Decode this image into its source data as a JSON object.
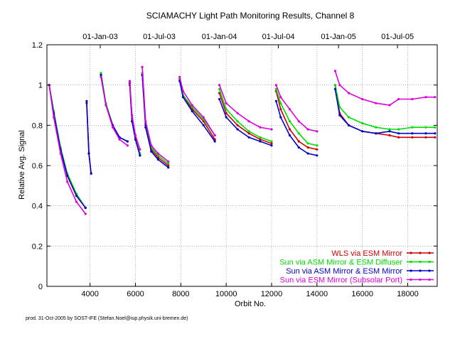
{
  "chart_data": {
    "type": "line",
    "title": "SCIAMACHY Light Path Monitoring Results, Channel 8",
    "xlabel": "Orbit No.",
    "ylabel": "Relative Avg. Signal",
    "xlim": [
      2100,
      19300
    ],
    "ylim": [
      0,
      1.2
    ],
    "x_ticks": [
      4000,
      6000,
      8000,
      10000,
      12000,
      14000,
      16000,
      18000
    ],
    "y_ticks": [
      "0",
      "0.2",
      "0.4",
      "0.6",
      "0.8",
      "1",
      "1.2"
    ],
    "top_axis_dates": [
      {
        "label": "01-Jan-03",
        "orbit": 4450
      },
      {
        "label": "01-Jul-03",
        "orbit": 7050
      },
      {
        "label": "01-Jan-04",
        "orbit": 9700
      },
      {
        "label": "01-Jul-04",
        "orbit": 12300
      },
      {
        "label": "01-Jan-05",
        "orbit": 14950
      },
      {
        "label": "01-Jul-05",
        "orbit": 17550
      }
    ],
    "grid": true,
    "legend_position": "bottom-right",
    "series": [
      {
        "name": "WLS via ESM Mirror",
        "color": "#cc0000",
        "segments": [
          [
            [
              2200,
              1.0
            ],
            [
              2400,
              0.86
            ],
            [
              2700,
              0.68
            ],
            [
              3000,
              0.55
            ],
            [
              3400,
              0.45
            ],
            [
              3800,
              0.39
            ]
          ],
          [
            [
              3850,
              0.91
            ],
            [
              3950,
              0.66
            ],
            [
              4050,
              0.56
            ]
          ],
          [
            [
              4480,
              1.05
            ],
            [
              4700,
              0.9
            ],
            [
              5000,
              0.8
            ],
            [
              5300,
              0.74
            ],
            [
              5650,
              0.72
            ]
          ],
          [
            [
              5750,
              1.0
            ],
            [
              5850,
              0.82
            ],
            [
              6000,
              0.73
            ],
            [
              6200,
              0.65
            ]
          ],
          [
            [
              6300,
              1.05
            ],
            [
              6450,
              0.8
            ],
            [
              6700,
              0.68
            ],
            [
              7000,
              0.64
            ],
            [
              7450,
              0.6
            ]
          ],
          [
            [
              7950,
              1.03
            ],
            [
              8100,
              0.95
            ],
            [
              8500,
              0.88
            ],
            [
              9000,
              0.82
            ],
            [
              9500,
              0.73
            ]
          ],
          [
            [
              9700,
              0.96
            ],
            [
              10000,
              0.86
            ],
            [
              10500,
              0.8
            ],
            [
              11000,
              0.76
            ],
            [
              11500,
              0.73
            ],
            [
              12000,
              0.71
            ]
          ],
          [
            [
              12200,
              0.97
            ],
            [
              12400,
              0.88
            ],
            [
              12800,
              0.78
            ],
            [
              13200,
              0.72
            ],
            [
              13600,
              0.69
            ],
            [
              14000,
              0.68
            ]
          ],
          [
            [
              14800,
              1.0
            ],
            [
              15000,
              0.86
            ],
            [
              15400,
              0.8
            ],
            [
              16000,
              0.77
            ],
            [
              16600,
              0.76
            ],
            [
              17200,
              0.75
            ],
            [
              17600,
              0.74
            ],
            [
              18200,
              0.74
            ],
            [
              18800,
              0.74
            ],
            [
              19200,
              0.74
            ]
          ]
        ]
      },
      {
        "name": "Sun via ASM Mirror & ESM Diffuser",
        "color": "#00dd00",
        "segments": [
          [
            [
              2200,
              1.0
            ],
            [
              2400,
              0.87
            ],
            [
              2700,
              0.69
            ],
            [
              3000,
              0.56
            ],
            [
              3400,
              0.46
            ],
            [
              3800,
              0.39
            ]
          ],
          [
            [
              4480,
              1.06
            ],
            [
              4700,
              0.91
            ],
            [
              5000,
              0.8
            ],
            [
              5300,
              0.74
            ],
            [
              5650,
              0.72
            ]
          ],
          [
            [
              5750,
              1.01
            ],
            [
              5850,
              0.82
            ],
            [
              6000,
              0.73
            ],
            [
              6200,
              0.66
            ]
          ],
          [
            [
              6300,
              1.06
            ],
            [
              6450,
              0.81
            ],
            [
              6700,
              0.69
            ],
            [
              7000,
              0.65
            ],
            [
              7450,
              0.61
            ]
          ],
          [
            [
              7950,
              1.03
            ],
            [
              8100,
              0.95
            ],
            [
              8500,
              0.89
            ],
            [
              9000,
              0.83
            ],
            [
              9500,
              0.75
            ]
          ],
          [
            [
              9700,
              0.98
            ],
            [
              10000,
              0.88
            ],
            [
              10500,
              0.82
            ],
            [
              11000,
              0.77
            ],
            [
              11500,
              0.74
            ],
            [
              12000,
              0.72
            ]
          ],
          [
            [
              12200,
              0.98
            ],
            [
              12400,
              0.91
            ],
            [
              12800,
              0.82
            ],
            [
              13200,
              0.76
            ],
            [
              13600,
              0.71
            ],
            [
              14000,
              0.7
            ]
          ],
          [
            [
              14800,
              1.0
            ],
            [
              15000,
              0.89
            ],
            [
              15400,
              0.84
            ],
            [
              16000,
              0.81
            ],
            [
              16600,
              0.79
            ],
            [
              17200,
              0.78
            ],
            [
              17600,
              0.78
            ],
            [
              18200,
              0.79
            ],
            [
              18800,
              0.79
            ],
            [
              19200,
              0.79
            ]
          ]
        ]
      },
      {
        "name": "Sun via ASM Mirror & ESM Mirror",
        "color": "#0000cc",
        "segments": [
          [
            [
              2200,
              1.0
            ],
            [
              2400,
              0.86
            ],
            [
              2700,
              0.68
            ],
            [
              3000,
              0.55
            ],
            [
              3400,
              0.45
            ],
            [
              3800,
              0.39
            ]
          ],
          [
            [
              3850,
              0.92
            ],
            [
              3950,
              0.66
            ],
            [
              4050,
              0.56
            ]
          ],
          [
            [
              4480,
              1.05
            ],
            [
              4700,
              0.9
            ],
            [
              5000,
              0.8
            ],
            [
              5300,
              0.74
            ],
            [
              5650,
              0.72
            ]
          ],
          [
            [
              5750,
              1.01
            ],
            [
              5850,
              0.82
            ],
            [
              6000,
              0.73
            ],
            [
              6200,
              0.65
            ]
          ],
          [
            [
              6300,
              1.05
            ],
            [
              6450,
              0.79
            ],
            [
              6700,
              0.67
            ],
            [
              7000,
              0.63
            ],
            [
              7450,
              0.59
            ]
          ],
          [
            [
              7950,
              1.02
            ],
            [
              8100,
              0.94
            ],
            [
              8500,
              0.87
            ],
            [
              9000,
              0.8
            ],
            [
              9500,
              0.72
            ]
          ],
          [
            [
              9700,
              0.93
            ],
            [
              10000,
              0.84
            ],
            [
              10500,
              0.78
            ],
            [
              11000,
              0.74
            ],
            [
              11500,
              0.72
            ],
            [
              12000,
              0.7
            ]
          ],
          [
            [
              12200,
              0.92
            ],
            [
              12400,
              0.84
            ],
            [
              12800,
              0.75
            ],
            [
              13200,
              0.69
            ],
            [
              13600,
              0.66
            ],
            [
              14000,
              0.65
            ]
          ],
          [
            [
              14800,
              0.98
            ],
            [
              15000,
              0.85
            ],
            [
              15400,
              0.8
            ],
            [
              16000,
              0.77
            ],
            [
              16600,
              0.76
            ],
            [
              17200,
              0.77
            ],
            [
              17600,
              0.76
            ],
            [
              18200,
              0.76
            ],
            [
              18800,
              0.76
            ],
            [
              19200,
              0.76
            ]
          ]
        ]
      },
      {
        "name": "Sun via ESM Mirror (Subsolar Port)",
        "color": "#dd00dd",
        "segments": [
          [
            [
              2200,
              1.0
            ],
            [
              2400,
              0.84
            ],
            [
              2700,
              0.66
            ],
            [
              3000,
              0.52
            ],
            [
              3400,
              0.42
            ],
            [
              3800,
              0.36
            ]
          ],
          [
            [
              4480,
              1.04
            ],
            [
              4700,
              0.9
            ],
            [
              5000,
              0.79
            ],
            [
              5300,
              0.73
            ],
            [
              5650,
              0.7
            ]
          ],
          [
            [
              5750,
              1.02
            ],
            [
              5850,
              0.85
            ],
            [
              6000,
              0.75
            ],
            [
              6200,
              0.68
            ]
          ],
          [
            [
              6300,
              1.09
            ],
            [
              6450,
              0.82
            ],
            [
              6700,
              0.7
            ],
            [
              7000,
              0.66
            ],
            [
              7450,
              0.62
            ]
          ],
          [
            [
              7950,
              1.04
            ],
            [
              8100,
              0.97
            ],
            [
              8500,
              0.9
            ],
            [
              9000,
              0.84
            ],
            [
              9500,
              0.75
            ]
          ],
          [
            [
              9700,
              1.0
            ],
            [
              10000,
              0.91
            ],
            [
              10500,
              0.86
            ],
            [
              11000,
              0.82
            ],
            [
              11500,
              0.79
            ],
            [
              12000,
              0.78
            ]
          ],
          [
            [
              12200,
              1.0
            ],
            [
              12400,
              0.94
            ],
            [
              12800,
              0.88
            ],
            [
              13200,
              0.82
            ],
            [
              13600,
              0.78
            ],
            [
              14000,
              0.77
            ]
          ],
          [
            [
              14800,
              1.07
            ],
            [
              15000,
              1.0
            ],
            [
              15400,
              0.96
            ],
            [
              16000,
              0.93
            ],
            [
              16600,
              0.91
            ],
            [
              17200,
              0.9
            ],
            [
              17600,
              0.93
            ],
            [
              18200,
              0.93
            ],
            [
              18800,
              0.94
            ],
            [
              19200,
              0.94
            ]
          ]
        ]
      }
    ]
  },
  "footer": "prod. 31-Oct-2005 by SOST-IFE (Stefan.Noel@iup.physik.uni-bremen.de)"
}
